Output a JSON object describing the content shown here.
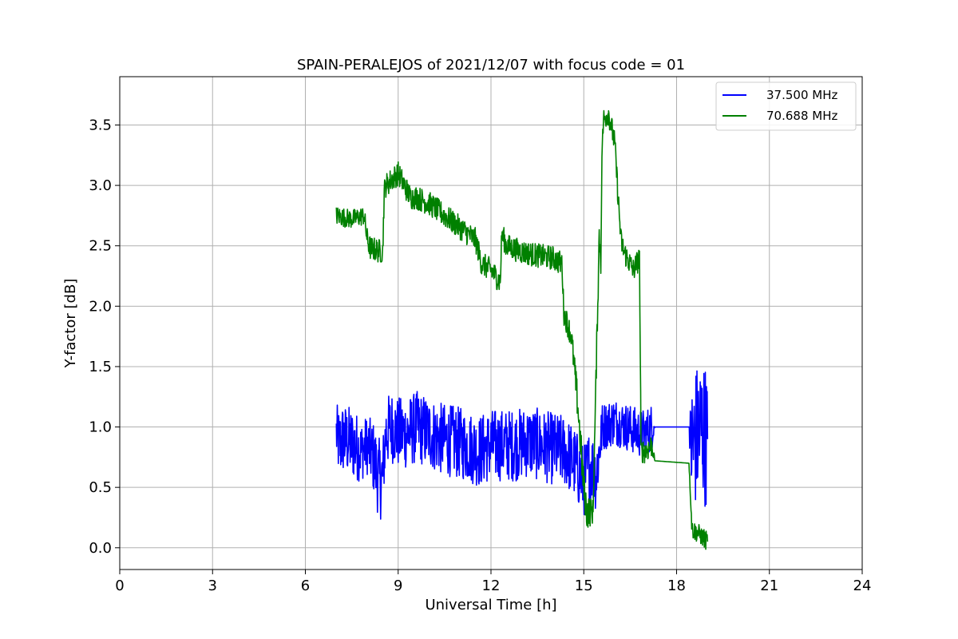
{
  "chart_data": {
    "type": "line",
    "title": "SPAIN-PERALEJOS of 2021/12/07 with focus code = 01",
    "xlabel": "Universal Time [h]",
    "ylabel": "Y-factor [dB]",
    "xlim": [
      0,
      24
    ],
    "ylim": [
      -0.18,
      3.9
    ],
    "xticks": [
      0,
      3,
      6,
      9,
      12,
      15,
      18,
      21,
      24
    ],
    "yticks": [
      0.0,
      0.5,
      1.0,
      1.5,
      2.0,
      2.5,
      3.0,
      3.5
    ],
    "xtick_labels": [
      "0",
      "3",
      "6",
      "9",
      "12",
      "15",
      "18",
      "21",
      "24"
    ],
    "ytick_labels": [
      "0.0",
      "0.5",
      "1.0",
      "1.5",
      "2.0",
      "2.5",
      "3.0",
      "3.5"
    ],
    "grid": true,
    "legend_position": "top-right",
    "series": [
      {
        "name": "37.500 MHz",
        "color": "#0000ff",
        "x": [
          7.0,
          7.1,
          7.2,
          7.4,
          7.6,
          7.8,
          8.0,
          8.2,
          8.4,
          8.5,
          8.6,
          8.8,
          9.0,
          9.3,
          9.6,
          10.0,
          10.4,
          10.8,
          11.2,
          11.6,
          12.0,
          12.4,
          12.8,
          13.2,
          13.6,
          14.0,
          14.4,
          14.7,
          15.0,
          15.2,
          15.4,
          15.6,
          16.0,
          16.4,
          16.8,
          17.0,
          17.2,
          17.3,
          18.4,
          18.5,
          18.6,
          18.8,
          19.0
        ],
        "y": [
          0.95,
          0.85,
          0.9,
          0.88,
          0.85,
          0.8,
          0.85,
          0.75,
          0.55,
          0.6,
          0.95,
          1.0,
          0.95,
          0.95,
          1.0,
          0.95,
          0.9,
          0.88,
          0.85,
          0.8,
          0.85,
          0.85,
          0.85,
          0.88,
          0.85,
          0.82,
          0.8,
          0.7,
          0.55,
          0.7,
          0.6,
          1.0,
          1.05,
          1.0,
          0.95,
          0.95,
          1.0,
          1.0,
          1.0,
          0.8,
          0.9,
          1.0,
          0.9
        ],
        "noise_amp": [
          0.25,
          0.3,
          0.3,
          0.3,
          0.3,
          0.25,
          0.25,
          0.3,
          0.35,
          0.3,
          0.3,
          0.3,
          0.3,
          0.3,
          0.3,
          0.3,
          0.3,
          0.3,
          0.3,
          0.3,
          0.3,
          0.3,
          0.3,
          0.3,
          0.3,
          0.3,
          0.3,
          0.3,
          0.3,
          0.3,
          0.3,
          0.2,
          0.2,
          0.2,
          0.2,
          0.2,
          0.2,
          0.0,
          0.0,
          0.6,
          0.6,
          0.6,
          0.6
        ]
      },
      {
        "name": "70.688 MHz",
        "color": "#008000",
        "x": [
          7.0,
          7.5,
          7.9,
          8.0,
          8.1,
          8.5,
          8.55,
          8.6,
          8.8,
          9.0,
          9.2,
          9.4,
          9.6,
          10.0,
          10.5,
          11.0,
          11.5,
          11.7,
          12.0,
          12.3,
          12.35,
          12.5,
          13.0,
          13.5,
          14.0,
          14.3,
          14.35,
          14.6,
          14.8,
          15.0,
          15.1,
          15.3,
          15.5,
          15.55,
          15.6,
          15.65,
          15.8,
          16.0,
          16.2,
          16.3,
          16.6,
          16.8,
          16.85,
          17.0,
          17.2,
          17.3,
          18.4,
          18.5,
          18.7,
          19.0
        ],
        "y": [
          2.75,
          2.72,
          2.75,
          2.55,
          2.48,
          2.45,
          2.95,
          3.0,
          3.05,
          3.1,
          3.0,
          2.9,
          2.9,
          2.85,
          2.75,
          2.65,
          2.55,
          2.35,
          2.3,
          2.2,
          2.6,
          2.5,
          2.45,
          2.42,
          2.4,
          2.35,
          1.95,
          1.75,
          1.2,
          0.5,
          0.3,
          0.3,
          2.6,
          2.4,
          3.4,
          3.55,
          3.6,
          3.35,
          2.55,
          2.45,
          2.3,
          2.4,
          0.8,
          0.8,
          0.85,
          0.72,
          0.7,
          0.15,
          0.12,
          0.05
        ],
        "noise_amp": [
          0.08,
          0.08,
          0.08,
          0.1,
          0.1,
          0.1,
          0.1,
          0.1,
          0.1,
          0.1,
          0.1,
          0.1,
          0.1,
          0.1,
          0.1,
          0.1,
          0.1,
          0.1,
          0.1,
          0.1,
          0.1,
          0.1,
          0.1,
          0.1,
          0.1,
          0.1,
          0.1,
          0.1,
          0.15,
          0.15,
          0.15,
          0.1,
          0.15,
          0.15,
          0.1,
          0.1,
          0.1,
          0.1,
          0.1,
          0.1,
          0.1,
          0.1,
          0.1,
          0.1,
          0.1,
          0.0,
          0.0,
          0.08,
          0.08,
          0.08
        ]
      }
    ]
  }
}
